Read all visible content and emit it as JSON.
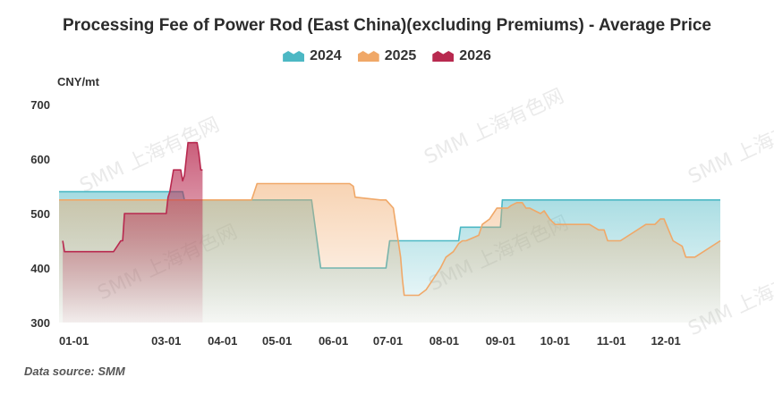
{
  "title": "Processing Fee of Power Rod (East China)(excluding Premiums) - Average Price",
  "unit_label": "CNY/mt",
  "source_label": "Data source:  SMM",
  "watermark": "SMM 上海有色网",
  "legend": [
    {
      "label": "2024",
      "color": "#4cb8c4"
    },
    {
      "label": "2025",
      "color": "#f0a868"
    },
    {
      "label": "2026",
      "color": "#b8294f"
    }
  ],
  "chart_data": {
    "type": "area",
    "title": "Processing Fee of Power Rod (East China)(excluding Premiums) - Average Price",
    "ylabel": "CNY/mt",
    "ylim": [
      300,
      700
    ],
    "yticks": [
      300,
      400,
      500,
      600,
      700
    ],
    "x_domain": [
      "01-01",
      "12-31"
    ],
    "x_ticks": [
      "01-01",
      "03-01",
      "04-01",
      "05-01",
      "06-01",
      "07-01",
      "08-01",
      "09-01",
      "10-01",
      "11-01",
      "12-01"
    ],
    "series": [
      {
        "name": "2024",
        "color": "#4cb8c4",
        "x": [
          "01-01",
          "03-10",
          "03-11",
          "05-20",
          "05-22",
          "05-25",
          "06-30",
          "07-02",
          "08-09",
          "08-10",
          "09-01",
          "09-02",
          "12-31"
        ],
        "values": [
          540,
          540,
          525,
          525,
          475,
          400,
          400,
          450,
          450,
          475,
          475,
          525,
          525
        ]
      },
      {
        "name": "2025",
        "color": "#f0a868",
        "x": [
          "01-01",
          "04-17",
          "04-20",
          "05-24",
          "05-30",
          "06-05",
          "06-10",
          "06-12",
          "06-13",
          "06-27",
          "06-30",
          "07-04",
          "07-08",
          "07-09",
          "07-10",
          "07-15",
          "07-18",
          "07-22",
          "07-25",
          "07-30",
          "08-02",
          "08-06",
          "08-09",
          "08-11",
          "08-13",
          "08-20",
          "08-22",
          "08-26",
          "08-30",
          "09-05",
          "09-07",
          "09-10",
          "09-13",
          "09-15",
          "09-17",
          "09-20",
          "09-23",
          "09-25",
          "09-28",
          "10-01",
          "10-07",
          "10-20",
          "10-25",
          "10-28",
          "10-30",
          "11-01",
          "11-06",
          "11-20",
          "11-25",
          "11-28",
          "11-30",
          "12-05",
          "12-10",
          "12-12",
          "12-15",
          "12-17",
          "12-31"
        ],
        "values": [
          525,
          525,
          555,
          555,
          555,
          555,
          555,
          550,
          530,
          525,
          525,
          510,
          420,
          380,
          350,
          350,
          350,
          360,
          375,
          400,
          420,
          430,
          445,
          450,
          450,
          460,
          480,
          490,
          510,
          510,
          515,
          520,
          520,
          510,
          510,
          505,
          500,
          505,
          490,
          480,
          480,
          480,
          470,
          470,
          450,
          450,
          450,
          480,
          480,
          490,
          490,
          450,
          440,
          420,
          420,
          420,
          450
        ]
      },
      {
        "name": "2026",
        "color": "#b8294f",
        "x": [
          "01-03",
          "01-04",
          "01-05",
          "01-31",
          "02-02",
          "02-04",
          "02-05",
          "02-06",
          "03-01",
          "03-02",
          "03-03",
          "03-05",
          "03-09",
          "03-10",
          "03-11",
          "03-12",
          "03-13",
          "03-14",
          "03-15",
          "03-17",
          "03-18",
          "03-19",
          "03-20",
          "03-21"
        ],
        "values": [
          450,
          430,
          430,
          430,
          440,
          450,
          450,
          500,
          500,
          530,
          540,
          580,
          580,
          560,
          570,
          600,
          630,
          630,
          630,
          630,
          630,
          610,
          580,
          580
        ]
      }
    ],
    "grid": false,
    "legend_position": "top-center"
  }
}
